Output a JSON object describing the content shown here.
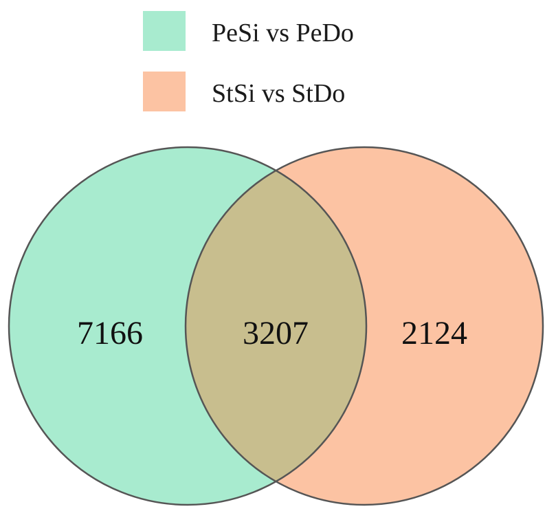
{
  "legend": [
    {
      "label": "PeSi vs PeDo",
      "color": "#A8EBCF"
    },
    {
      "label": "StSi vs StDo",
      "color": "#FCC3A3"
    }
  ],
  "colors": {
    "set_a": "#A8EBCF",
    "set_b": "#FCC3A3",
    "overlap": "#C8BE8E",
    "outline": "#555555"
  },
  "chart_data": {
    "type": "venn",
    "sets": [
      {
        "name": "PeSi vs PeDo",
        "only": "7166"
      },
      {
        "name": "StSi vs StDo",
        "only": "2124"
      }
    ],
    "intersection": "3207"
  }
}
